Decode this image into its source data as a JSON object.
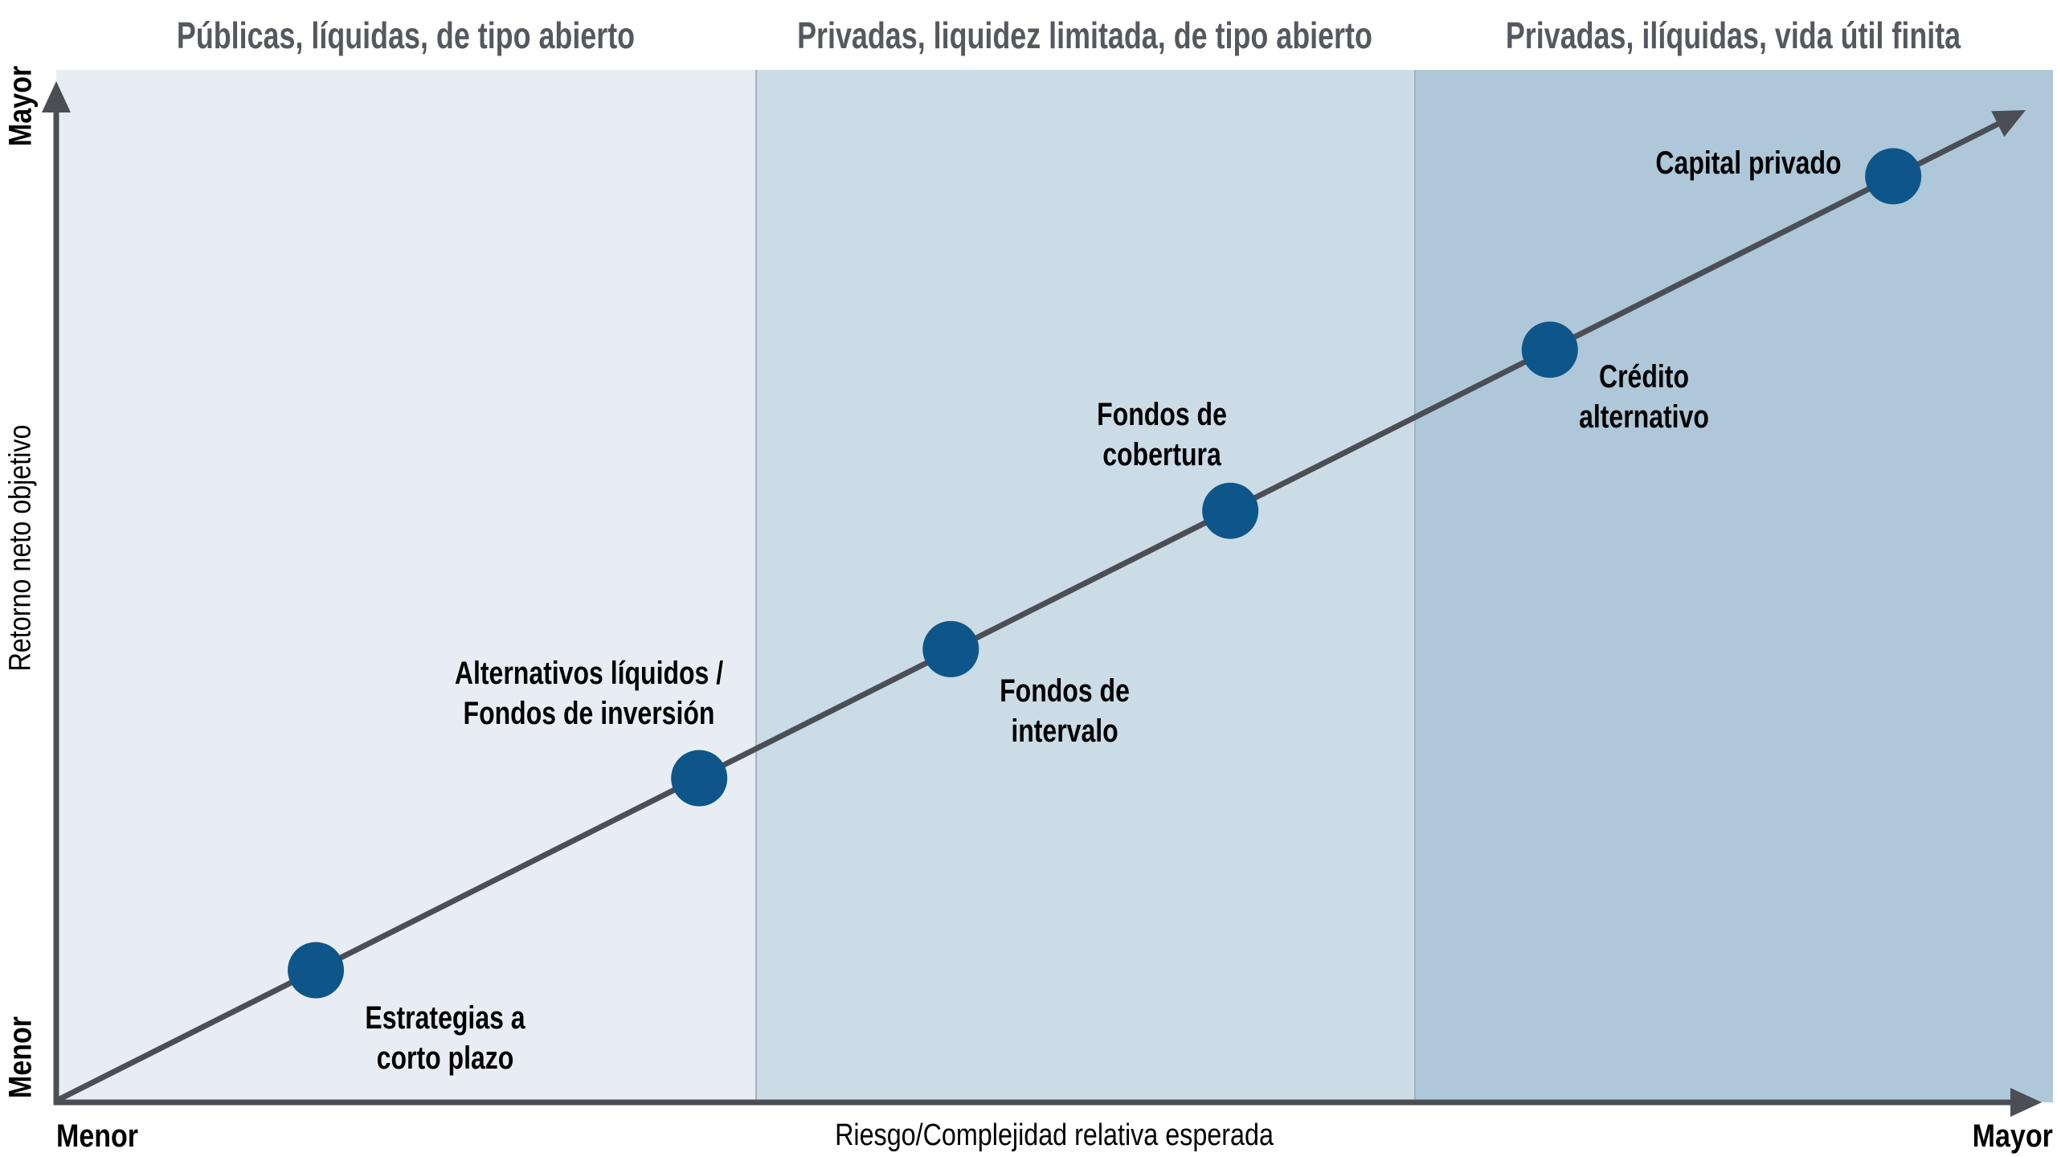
{
  "figure": {
    "background_color": "#ffffff"
  },
  "chart_data": {
    "type": "scatter",
    "title": "",
    "xlabel": "Riesgo/Complejidad relativa esperada",
    "ylabel": "Retorno neto objetivo",
    "x_end_labels": {
      "min": "Menor",
      "max": "Mayor"
    },
    "y_end_labels": {
      "min": "Menor",
      "max": "Mayor"
    },
    "axis_scale": "qualitative 0-1, both axes from Menor to Mayor, no numeric ticks, no grid",
    "legend_position": "none",
    "style": {
      "dot_color": "#0e5689",
      "dot_radius_px": 35,
      "line_color": "#4b4e55",
      "header_text_color": "#55585e",
      "label_text_color": "#000000",
      "band_divider_color": "#a8b1ba"
    },
    "bands": [
      {
        "label": "Públicas, líquidas, de tipo abierto",
        "x_range": [
          0.0,
          0.35
        ],
        "color": "#e8edf4"
      },
      {
        "label": "Privadas, liquidez limitada, de tipo abierto",
        "x_range": [
          0.35,
          0.68
        ],
        "color": "#cbdce7"
      },
      {
        "label": "Privadas, ilíquidas, vida útil finita",
        "x_range": [
          0.68,
          1.0
        ],
        "color": "#aec8d9"
      }
    ],
    "trend_line": {
      "from_xy": [
        0.0,
        0.0
      ],
      "to_xy": [
        0.988,
        0.963
      ],
      "arrowhead": true
    },
    "points": [
      {
        "name": "Estrategias a corto plazo",
        "label_lines": [
          "Estrategias a",
          "corto plazo"
        ],
        "x": 0.13,
        "y": 0.128,
        "label_offset": [
          161,
          84
        ]
      },
      {
        "name": "Alternativos líquidos / Fondos de inversión",
        "label_lines": [
          "Alternativos líquidos /",
          "Fondos de inversión"
        ],
        "x": 0.322,
        "y": 0.314,
        "label_offset": [
          -137,
          -106
        ]
      },
      {
        "name": "Fondos de intervalo",
        "label_lines": [
          "Fondos de",
          "intervalo"
        ],
        "x": 0.448,
        "y": 0.439,
        "label_offset": [
          142,
          77
        ]
      },
      {
        "name": "Fondos de cobertura",
        "label_lines": [
          "Fondos de",
          "cobertura"
        ],
        "x": 0.588,
        "y": 0.573,
        "label_offset": [
          -85,
          -95
        ]
      },
      {
        "name": "Crédito alternativo",
        "label_lines": [
          "Crédito",
          "alternativo"
        ],
        "x": 0.748,
        "y": 0.729,
        "label_offset": [
          117,
          59
        ]
      },
      {
        "name": "Capital privado",
        "label_lines": [
          "Capital privado"
        ],
        "x": 0.92,
        "y": 0.897,
        "label_offset": [
          -180,
          -16
        ]
      }
    ]
  }
}
